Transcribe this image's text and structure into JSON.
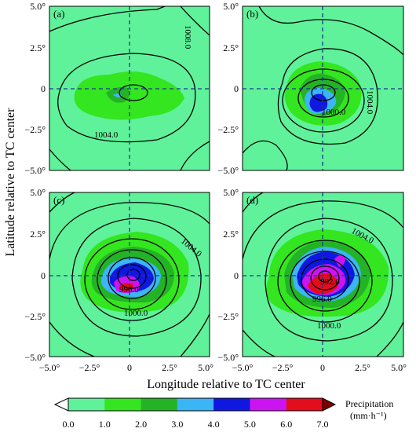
{
  "chart_data": {
    "type": "heatmap",
    "xlabel": "Longitude relative to TC center",
    "ylabel": "Latitude relative to TC center",
    "xlim": [
      -5,
      5
    ],
    "ylim": [
      -5,
      5
    ],
    "xticks": [
      "−5.0°",
      "−2.5°",
      "0",
      "2.5°",
      "5.0°"
    ],
    "yticks": [
      "5.0°",
      "2.5°",
      "0",
      "−2.5°",
      "−5.0°"
    ],
    "colorbar": {
      "title": "Precipitation",
      "unit": "(mm·h⁻¹)",
      "levels": [
        "0.0",
        "1.0",
        "2.0",
        "3.0",
        "4.0",
        "5.0",
        "6.0",
        "7.0"
      ],
      "colors": [
        "#5ff29a",
        "#33e61f",
        "#24b326",
        "#3bb5f5",
        "#0f17e0",
        "#cc14f2",
        "#e30d1c",
        "#7a0000"
      ]
    },
    "panels": [
      {
        "label": "(a)",
        "contour_labels": [
          "1008.0",
          "1004.0"
        ],
        "isobars": [
          1008.0,
          1004.0
        ],
        "precip_max": 4.0
      },
      {
        "label": "(b)",
        "contour_labels": [
          "1004.0",
          "1000.0"
        ],
        "isobars": [
          1004.0,
          1000.0
        ],
        "precip_max": 5.0
      },
      {
        "label": "(c)",
        "contour_labels": [
          "1004.0",
          "1000.0",
          "996.0"
        ],
        "isobars": [
          1004.0,
          1000.0,
          996.0
        ],
        "precip_max": 6.5
      },
      {
        "label": "(d)",
        "contour_labels": [
          "1004.0",
          "1000.0",
          "996.0",
          "992.0"
        ],
        "isobars": [
          1004.0,
          1000.0,
          996.0,
          992.0
        ],
        "precip_max": 7.0
      }
    ],
    "grid": false,
    "reference_lines": "dashed blue crosshair at 0,0"
  }
}
